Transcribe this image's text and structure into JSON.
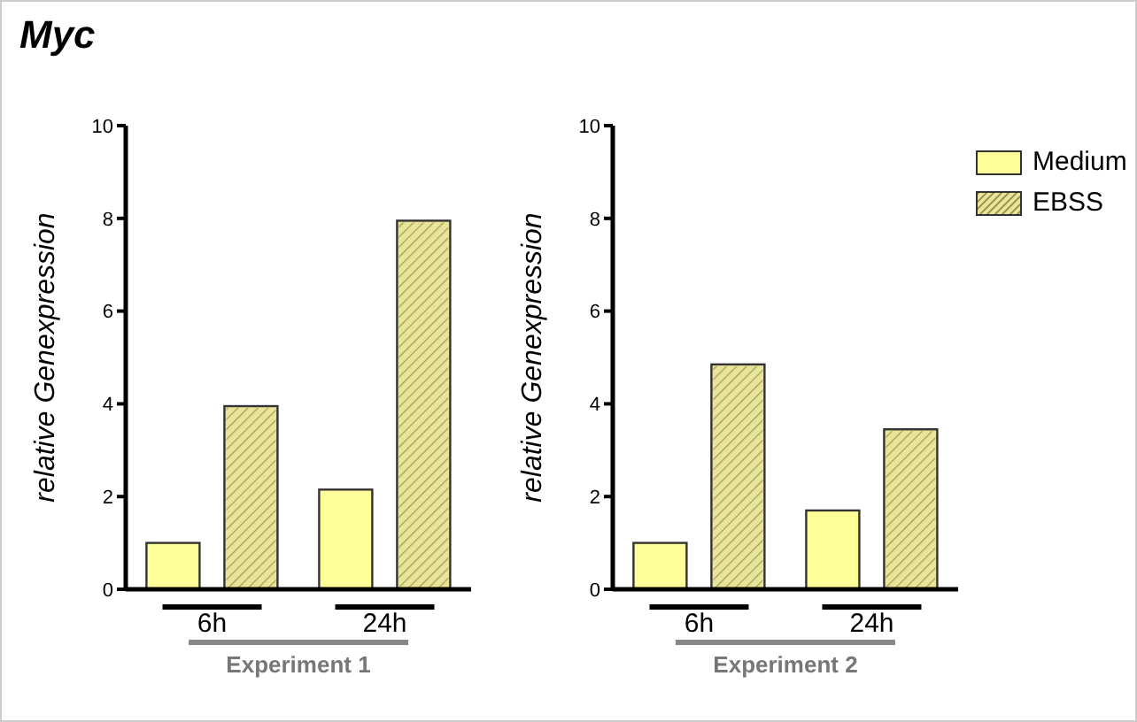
{
  "chart_data": [
    {
      "type": "bar",
      "title": "Myc",
      "categories": [
        "6h",
        "24h"
      ],
      "xlabel": "Experiment 1",
      "ylabel": "relative Genexpression",
      "ylim": [
        0,
        10
      ],
      "yticks": [
        0,
        2,
        4,
        6,
        8,
        10
      ],
      "grid": false,
      "series": [
        {
          "color": "#ffff99",
          "values": [
            1.0,
            2.15
          ]
        },
        {
          "color": "#e8e49a",
          "values": [
            3.95,
            7.95
          ]
        }
      ]
    },
    {
      "type": "bar",
      "categories": [
        "6h",
        "24h"
      ],
      "xlabel": "Experiment 2",
      "ylabel": "relative Genexpression",
      "ylim": [
        0,
        10
      ],
      "yticks": [
        0,
        2,
        4,
        6,
        8,
        10
      ],
      "grid": false,
      "legend": "right",
      "series": [
        {
          "name": "Medium",
          "color": "#ffff99",
          "values": [
            1.0,
            1.7
          ]
        },
        {
          "name": "EBSS",
          "color": "#e8e49a",
          "values": [
            4.85,
            3.45
          ]
        }
      ]
    }
  ]
}
